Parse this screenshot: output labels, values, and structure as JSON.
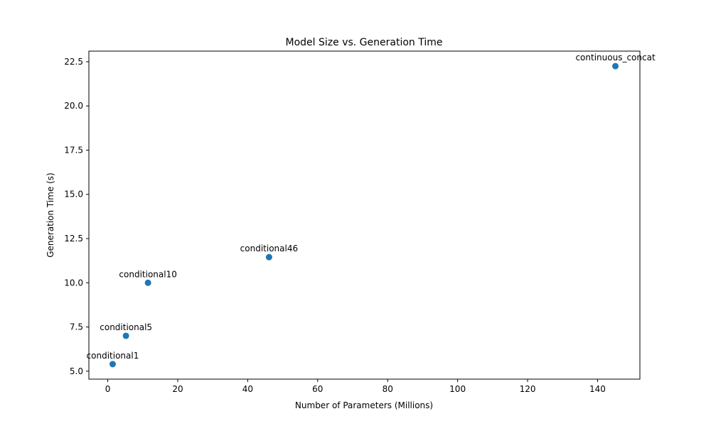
{
  "chart_data": {
    "type": "scatter",
    "title": "Model Size vs. Generation Time",
    "xlabel": "Number of Parameters (Millions)",
    "ylabel": "Generation Time (s)",
    "xlim": [
      -5.4,
      152.1
    ],
    "ylim": [
      4.55,
      23.1
    ],
    "xticks": [
      0,
      20,
      40,
      60,
      80,
      100,
      120,
      140
    ],
    "xtick_labels": [
      "0",
      "20",
      "40",
      "60",
      "80",
      "100",
      "120",
      "140"
    ],
    "yticks": [
      5.0,
      7.5,
      10.0,
      12.5,
      15.0,
      17.5,
      20.0,
      22.5
    ],
    "ytick_labels": [
      "5.0",
      "7.5",
      "10.0",
      "12.5",
      "15.0",
      "17.5",
      "20.0",
      "22.5"
    ],
    "grid": false,
    "marker_color": "#1f77b4",
    "points": [
      {
        "label": "conditional1",
        "x": 1.4,
        "y": 5.4
      },
      {
        "label": "conditional5",
        "x": 5.2,
        "y": 7.0
      },
      {
        "label": "conditional10",
        "x": 11.5,
        "y": 10.0
      },
      {
        "label": "conditional46",
        "x": 46.1,
        "y": 11.45
      },
      {
        "label": "continuous_concat",
        "x": 145.1,
        "y": 22.25
      }
    ]
  }
}
